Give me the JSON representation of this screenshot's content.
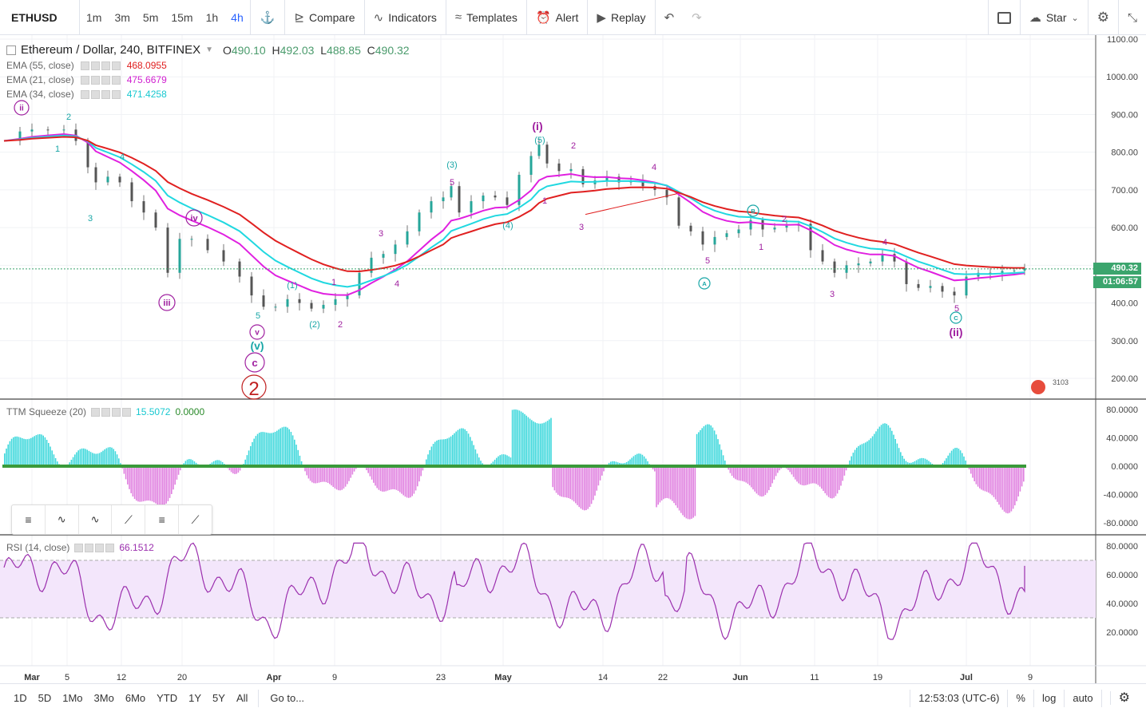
{
  "toolbar": {
    "symbol": "ETHUSD",
    "timeframes": [
      "1m",
      "3m",
      "5m",
      "15m",
      "1h",
      "4h"
    ],
    "active_timeframe": "4h",
    "compare": "Compare",
    "indicators": "Indicators",
    "templates": "Templates",
    "alert": "Alert",
    "replay": "Replay",
    "star": "Star"
  },
  "legend": {
    "title": "Ethereum / Dollar, 240, BITFINEX",
    "o_label": "O",
    "o": "490.10",
    "h_label": "H",
    "h": "492.03",
    "l_label": "L",
    "l": "488.85",
    "c_label": "C",
    "c": "490.32",
    "ema55_label": "EMA (55, close)",
    "ema55": "468.0955",
    "ema21_label": "EMA (21, close)",
    "ema21": "475.6679",
    "ema34_label": "EMA (34, close)",
    "ema34": "471.4258"
  },
  "price_axis": [
    "1100.00",
    "1000.00",
    "900.00",
    "800.00",
    "700.00",
    "600.00",
    "500.00",
    "400.00",
    "300.00",
    "200.00"
  ],
  "last_price": "490.32",
  "countdown": "01:06:57",
  "squeeze": {
    "label": "TTM Squeeze (20)",
    "v1": "15.5072",
    "v2": "0.0000",
    "axis": [
      "80.0000",
      "40.0000",
      "0.0000",
      "-40.0000",
      "-80.0000"
    ]
  },
  "rsi": {
    "label": "RSI (14, close)",
    "value": "66.1512",
    "axis": [
      "80.0000",
      "60.0000",
      "40.0000",
      "20.0000"
    ]
  },
  "time_axis": [
    "Mar",
    "5",
    "12",
    "20",
    "Apr",
    "9",
    "23",
    "May",
    "14",
    "22",
    "Jun",
    "11",
    "19",
    "Jul",
    "9"
  ],
  "wave_labels": [
    "ii",
    "iii",
    "iv",
    "v",
    "(v)",
    "c",
    "2",
    "(i)",
    "(ii)",
    "(3)",
    "(4)",
    "(5)",
    "B",
    "A",
    "C",
    "(1)",
    "(2)",
    "1",
    "2",
    "3",
    "4",
    "5",
    "3103"
  ],
  "bottom": {
    "ranges": [
      "1D",
      "5D",
      "1Mo",
      "3Mo",
      "6Mo",
      "YTD",
      "1Y",
      "5Y",
      "All"
    ],
    "goto": "Go to...",
    "clock": "12:53:03 (UTC-6)",
    "pct": "%",
    "log": "log",
    "auto": "auto"
  },
  "colors": {
    "ema55": "#e02020",
    "ema21": "#e020e0",
    "ema34": "#20d8e0",
    "squeeze_pos": "#3fd8dc",
    "squeeze_neg": "#e080e0",
    "rsi_line": "#9b2fae",
    "rsi_band": "#f3e6fb",
    "wave_primary": "#a020a0",
    "wave_minor": "#1aa7a7"
  }
}
